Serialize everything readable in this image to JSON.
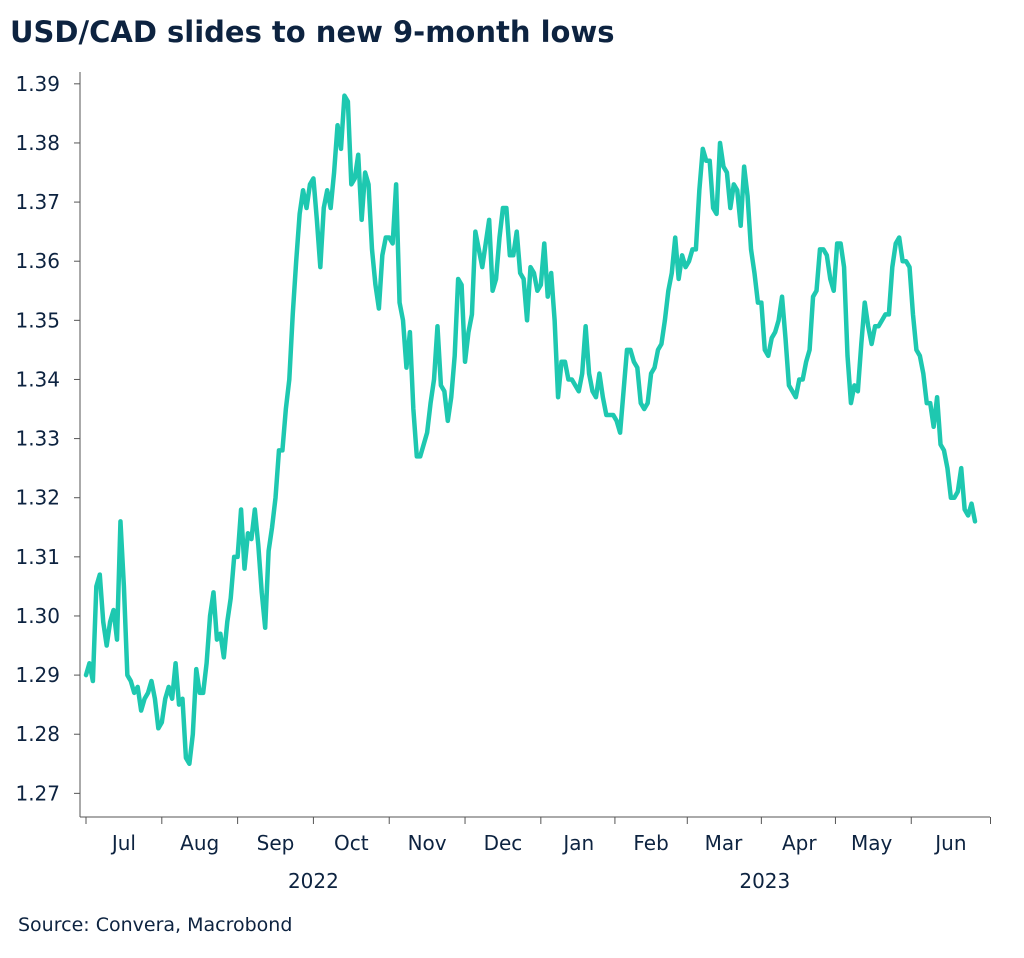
{
  "chart_data": {
    "type": "line",
    "title": "USD/CAD slides to new 9-month lows",
    "source": "Source: Convera, Macrobond",
    "color": "#1ec8b0",
    "ylim": [
      1.266,
      1.392
    ],
    "yticks": [
      1.27,
      1.28,
      1.29,
      {
        "value": 1.3,
        "label": "1.30"
      },
      1.31,
      1.32,
      1.33,
      1.34,
      1.35,
      1.36,
      1.37,
      1.38,
      1.39
    ],
    "x_groups": [
      "2022",
      "2023"
    ],
    "categories": [
      null,
      null,
      null,
      null,
      null,
      null,
      null,
      null,
      null,
      null,
      null,
      "Jul",
      null,
      null,
      null,
      null,
      null,
      null,
      null,
      null,
      null,
      null,
      null,
      null,
      null,
      null,
      null,
      null,
      null,
      null,
      null,
      null,
      null,
      "Aug",
      null,
      null,
      null,
      null,
      null,
      null,
      null,
      null,
      null,
      null,
      null,
      null,
      null,
      null,
      null,
      null,
      null,
      null,
      null,
      null,
      null,
      "Sep",
      null,
      null,
      null,
      null,
      null,
      null,
      null,
      null,
      null,
      null,
      null,
      null,
      null,
      null,
      null,
      null,
      null,
      null,
      null,
      null,
      null,
      "Oct",
      null,
      null,
      null,
      null,
      null,
      null,
      null,
      null,
      null,
      null,
      null,
      null,
      null,
      null,
      null,
      null,
      null,
      null,
      null,
      null,
      null,
      "Nov",
      null,
      null,
      null,
      null,
      null,
      null,
      null,
      null,
      null,
      null,
      null,
      null,
      null,
      null,
      null,
      null,
      null,
      null,
      null,
      null,
      null,
      "Dec",
      null,
      null,
      null,
      null,
      null,
      null,
      null,
      null,
      null,
      null,
      null,
      null,
      null,
      null,
      null,
      null,
      null,
      null,
      null,
      null,
      null,
      "Jan",
      null,
      null,
      null,
      null,
      null,
      null,
      null,
      null,
      null,
      null,
      null,
      null,
      null,
      null,
      null,
      null,
      null,
      null,
      null,
      null,
      "Feb",
      null,
      null,
      null,
      null,
      null,
      null,
      null,
      null,
      null,
      null,
      null,
      null,
      null,
      null,
      null,
      null,
      null,
      null,
      null,
      null,
      "Mar",
      null,
      null,
      null,
      null,
      null,
      null,
      null,
      null,
      null,
      null,
      null,
      null,
      null,
      null,
      null,
      null,
      null,
      null,
      null,
      null,
      null,
      "Apr",
      null,
      null,
      null,
      null,
      null,
      null,
      null,
      null,
      null,
      null,
      null,
      null,
      null,
      null,
      null,
      null,
      null,
      null,
      null,
      null,
      "May",
      null,
      null,
      null,
      null,
      null,
      null,
      null,
      null,
      null,
      null,
      null,
      null,
      null,
      null,
      null,
      null,
      null,
      null,
      null,
      null,
      null,
      null,
      "Jun",
      null,
      null,
      null,
      null,
      null,
      null,
      null
    ],
    "values": [
      1.29,
      1.292,
      1.289,
      1.305,
      1.307,
      1.299,
      1.295,
      1.299,
      1.301,
      1.296,
      1.316,
      1.305,
      1.29,
      1.289,
      1.287,
      1.288,
      1.284,
      1.286,
      1.287,
      1.289,
      1.286,
      1.281,
      1.282,
      1.286,
      1.288,
      1.286,
      1.292,
      1.285,
      1.286,
      1.276,
      1.275,
      1.28,
      1.291,
      1.287,
      1.287,
      1.292,
      1.3,
      1.304,
      1.296,
      1.297,
      1.293,
      1.299,
      1.303,
      1.31,
      1.31,
      1.318,
      1.308,
      1.314,
      1.313,
      1.318,
      1.312,
      1.304,
      1.298,
      1.311,
      1.315,
      1.32,
      1.328,
      1.328,
      1.335,
      1.34,
      1.351,
      1.36,
      1.368,
      1.372,
      1.369,
      1.373,
      1.374,
      1.367,
      1.359,
      1.369,
      1.372,
      1.369,
      1.375,
      1.383,
      1.379,
      1.388,
      1.387,
      1.373,
      1.374,
      1.378,
      1.367,
      1.375,
      1.373,
      1.362,
      1.356,
      1.352,
      1.361,
      1.364,
      1.364,
      1.363,
      1.373,
      1.353,
      1.35,
      1.342,
      1.348,
      1.335,
      1.327,
      1.327,
      1.329,
      1.331,
      1.336,
      1.34,
      1.349,
      1.339,
      1.338,
      1.333,
      1.337,
      1.344,
      1.357,
      1.356,
      1.343,
      1.348,
      1.351,
      1.365,
      1.362,
      1.359,
      1.363,
      1.367,
      1.355,
      1.357,
      1.364,
      1.369,
      1.369,
      1.361,
      1.361,
      1.365,
      1.358,
      1.357,
      1.35,
      1.359,
      1.358,
      1.355,
      1.356,
      1.363,
      1.354,
      1.358,
      1.35,
      1.337,
      1.343,
      1.343,
      1.34,
      1.34,
      1.339,
      1.338,
      1.341,
      1.349,
      1.341,
      1.338,
      1.337,
      1.341,
      1.337,
      1.334,
      1.334,
      1.334,
      1.333,
      1.331,
      1.338,
      1.345,
      1.345,
      1.343,
      1.342,
      1.336,
      1.335,
      1.336,
      1.341,
      1.342,
      1.345,
      1.346,
      1.35,
      1.355,
      1.358,
      1.364,
      1.357,
      1.361,
      1.359,
      1.36,
      1.362,
      1.362,
      1.372,
      1.379,
      1.377,
      1.377,
      1.369,
      1.368,
      1.38,
      1.376,
      1.375,
      1.369,
      1.373,
      1.372,
      1.366,
      1.376,
      1.371,
      1.362,
      1.358,
      1.353,
      1.353,
      1.345,
      1.344,
      1.347,
      1.348,
      1.35,
      1.354,
      1.347,
      1.339,
      1.338,
      1.337,
      1.34,
      1.34,
      1.343,
      1.345,
      1.354,
      1.355,
      1.362,
      1.362,
      1.361,
      1.357,
      1.355,
      1.363,
      1.363,
      1.359,
      1.344,
      1.336,
      1.339,
      1.338,
      1.346,
      1.353,
      1.349,
      1.346,
      1.349,
      1.349,
      1.35,
      1.351,
      1.351,
      1.359,
      1.363,
      1.364,
      1.36,
      1.36,
      1.359,
      1.351,
      1.345,
      1.344,
      1.341,
      1.336,
      1.336,
      1.332,
      1.337,
      1.329,
      1.328,
      1.325,
      1.32,
      1.32,
      1.321,
      1.325,
      1.318,
      1.317,
      1.319,
      1.316
    ]
  }
}
